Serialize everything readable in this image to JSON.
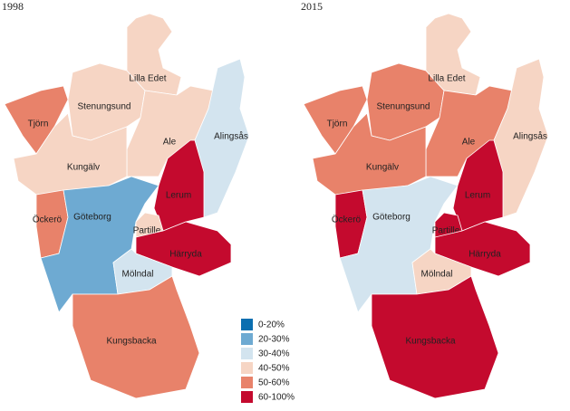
{
  "maps": [
    {
      "title": "1998",
      "regions": [
        {
          "name": "Tjörn",
          "color": "#e8826a"
        },
        {
          "name": "Stenungsund",
          "color": "#f6d5c4"
        },
        {
          "name": "Lilla Edet",
          "color": "#f6d5c4"
        },
        {
          "name": "Ale",
          "color": "#f6d5c4"
        },
        {
          "name": "Alingsås",
          "color": "#d3e4ef"
        },
        {
          "name": "Kungälv",
          "color": "#f6d5c4"
        },
        {
          "name": "Öckerö",
          "color": "#e8826a"
        },
        {
          "name": "Göteborg",
          "color": "#6eaad2"
        },
        {
          "name": "Lerum",
          "color": "#c40a2e"
        },
        {
          "name": "Partille",
          "color": "#f6d5c4"
        },
        {
          "name": "Härryda",
          "color": "#c40a2e"
        },
        {
          "name": "Mölndal",
          "color": "#d3e4ef"
        },
        {
          "name": "Kungsbacka",
          "color": "#e8826a"
        }
      ]
    },
    {
      "title": "2015",
      "regions": [
        {
          "name": "Tjörn",
          "color": "#e8826a"
        },
        {
          "name": "Stenungsund",
          "color": "#e8826a"
        },
        {
          "name": "Lilla Edet",
          "color": "#f6d5c4"
        },
        {
          "name": "Ale",
          "color": "#e8826a"
        },
        {
          "name": "Alingsås",
          "color": "#f6d5c4"
        },
        {
          "name": "Kungälv",
          "color": "#e8826a"
        },
        {
          "name": "Öckerö",
          "color": "#c40a2e"
        },
        {
          "name": "Göteborg",
          "color": "#d3e4ef"
        },
        {
          "name": "Lerum",
          "color": "#c40a2e"
        },
        {
          "name": "Partille",
          "color": "#c40a2e"
        },
        {
          "name": "Härryda",
          "color": "#c40a2e"
        },
        {
          "name": "Mölndal",
          "color": "#f6d5c4"
        },
        {
          "name": "Kungsbacka",
          "color": "#c40a2e"
        }
      ]
    }
  ],
  "legend": [
    {
      "label": "0-20%",
      "color": "#0b6fb0"
    },
    {
      "label": "20-30%",
      "color": "#6eaad2"
    },
    {
      "label": "30-40%",
      "color": "#d3e4ef"
    },
    {
      "label": "40-50%",
      "color": "#f6d5c4"
    },
    {
      "label": "50-60%",
      "color": "#e8826a"
    },
    {
      "label": "60-100%",
      "color": "#c40a2e"
    }
  ]
}
